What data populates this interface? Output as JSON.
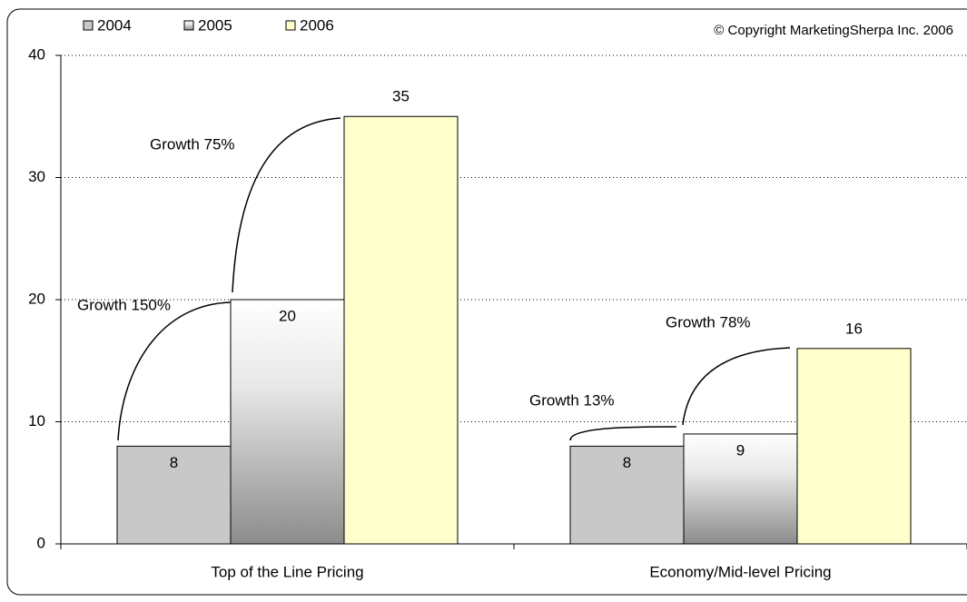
{
  "chart_data": {
    "type": "bar",
    "categories": [
      "Top of the Line Pricing",
      "Economy/Mid-level Pricing"
    ],
    "series": [
      {
        "name": "2004",
        "color": "#c8c8c8",
        "values": [
          8,
          8
        ]
      },
      {
        "name": "2005",
        "color": "gradient",
        "values": [
          20,
          9
        ]
      },
      {
        "name": "2006",
        "color": "#ffffcc",
        "values": [
          35,
          16
        ]
      }
    ],
    "ylim": [
      0,
      40
    ],
    "yticks": [
      0,
      10,
      20,
      30,
      40
    ],
    "grid": true,
    "annotations": [
      "Growth 150%",
      "Growth 75%",
      "Growth 13%",
      "Growth 78%"
    ],
    "copyright": "© Copyright MarketingSherpa Inc. 2006"
  }
}
